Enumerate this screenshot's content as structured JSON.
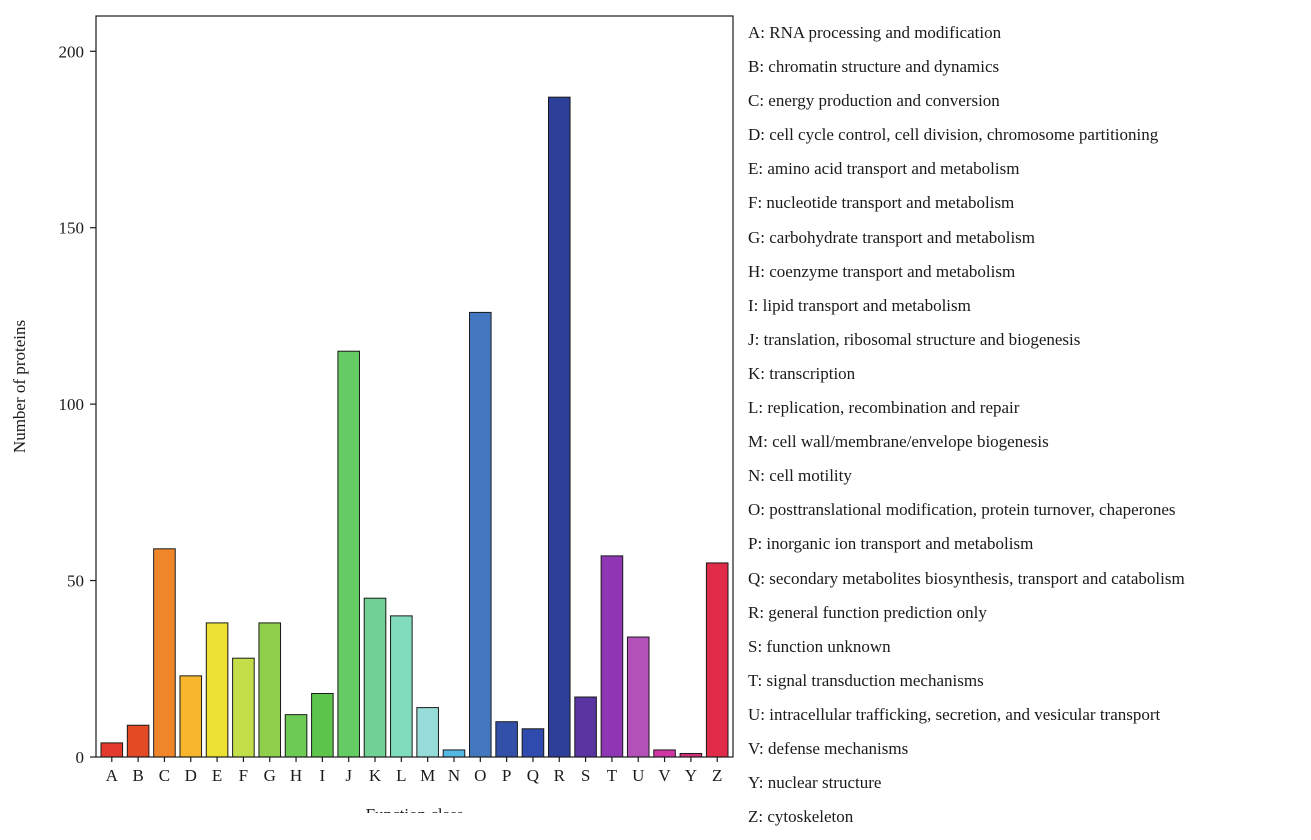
{
  "chart_data": {
    "type": "bar",
    "xlabel": "Function class",
    "ylabel": "Number of proteins",
    "ylim": [
      0,
      210
    ],
    "yticks": [
      0,
      50,
      100,
      150,
      200
    ],
    "grid": false,
    "legend_position": "right",
    "categories": [
      "A",
      "B",
      "C",
      "D",
      "E",
      "F",
      "G",
      "H",
      "I",
      "J",
      "K",
      "L",
      "M",
      "N",
      "O",
      "P",
      "Q",
      "R",
      "S",
      "T",
      "U",
      "V",
      "Y",
      "Z"
    ],
    "values": [
      4,
      9,
      59,
      23,
      38,
      28,
      38,
      12,
      18,
      115,
      45,
      40,
      14,
      2,
      126,
      10,
      8,
      187,
      17,
      57,
      34,
      2,
      1,
      55
    ],
    "colors": [
      "#e23a2c",
      "#e44a24",
      "#f0862a",
      "#f6b72c",
      "#ede134",
      "#c2df4a",
      "#8fcf4c",
      "#6dca55",
      "#5dc44c",
      "#65cc63",
      "#71d093",
      "#80dcbc",
      "#96dcd8",
      "#55b8e4",
      "#4378c0",
      "#3350a8",
      "#2f4bae",
      "#2e3f9a",
      "#5a34a0",
      "#8f36b4",
      "#b451b9",
      "#d037a5",
      "#d2317a",
      "#e02c48"
    ],
    "legend": [
      "A: RNA processing and modification",
      "B: chromatin structure and dynamics",
      "C: energy production and conversion",
      "D: cell cycle control, cell division, chromosome partitioning",
      "E: amino acid transport and metabolism",
      "F: nucleotide transport and metabolism",
      "G: carbohydrate transport and metabolism",
      "H: coenzyme transport and metabolism",
      "I: lipid transport and metabolism",
      "J: translation, ribosomal structure and biogenesis",
      "K: transcription",
      "L: replication, recombination and repair",
      "M: cell wall/membrane/envelope biogenesis",
      "N: cell motility",
      "O: posttranslational modification, protein turnover, chaperones",
      "P: inorganic ion transport and metabolism",
      "Q: secondary metabolites biosynthesis, transport and catabolism",
      "R: general function prediction only",
      "S: function unknown",
      "T: signal transduction mechanisms",
      "U: intracellular trafficking, secretion, and vesicular transport",
      "V: defense mechanisms",
      "Y: nuclear structure",
      "Z: cytoskeleton"
    ]
  }
}
